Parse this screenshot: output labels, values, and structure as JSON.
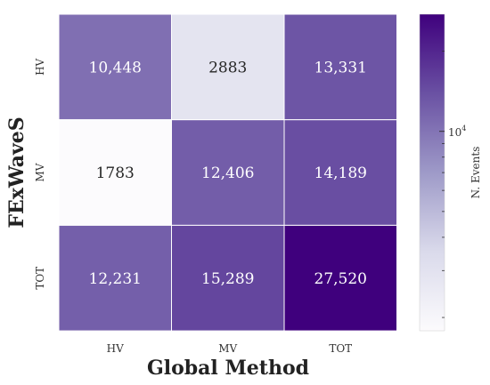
{
  "chart_data": {
    "type": "heatmap",
    "xlabel": "Global Method",
    "ylabel": "FExWaveS",
    "x_categories": [
      "HV",
      "MV",
      "TOT"
    ],
    "y_categories": [
      "HV",
      "MV",
      "TOT"
    ],
    "values": [
      [
        10448,
        2883,
        13331
      ],
      [
        1783,
        12406,
        14189
      ],
      [
        12231,
        15289,
        27520
      ]
    ],
    "value_labels": [
      [
        "10,448",
        "2883",
        "13,331"
      ],
      [
        "1783",
        "12,406",
        "14,189"
      ],
      [
        "12,231",
        "15,289",
        "27,520"
      ]
    ],
    "colorbar": {
      "label": "N. Events",
      "scale": "log",
      "range": [
        1783,
        27520
      ],
      "major_tick_label": "10",
      "major_tick_exponent": "4",
      "major_tick_value": 10000
    },
    "colormap": [
      "#fcfbfd",
      "#dadaeb",
      "#9e9ac8",
      "#6a51a3",
      "#3f007d"
    ]
  }
}
